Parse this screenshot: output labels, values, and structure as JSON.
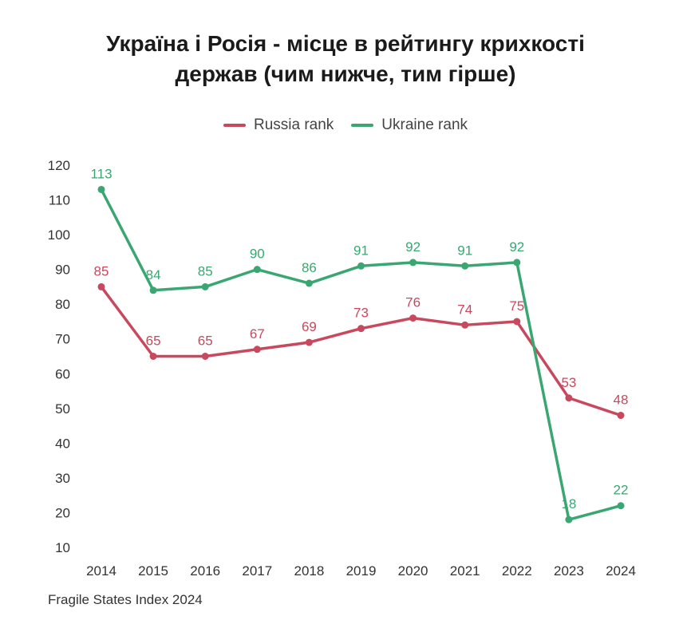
{
  "chart_data": {
    "type": "line",
    "title_lines": [
      "Україна і Росія - місце в рейтингу крихкості",
      "держав (чим нижче, тим гірше)"
    ],
    "categories": [
      "2014",
      "2015",
      "2016",
      "2017",
      "2018",
      "2019",
      "2020",
      "2021",
      "2022",
      "2023",
      "2024"
    ],
    "series": [
      {
        "name": "Russia rank",
        "color": "#c8485e",
        "values": [
          85,
          65,
          65,
          67,
          69,
          73,
          76,
          74,
          75,
          53,
          48
        ]
      },
      {
        "name": "Ukraine rank",
        "color": "#3aa772",
        "values": [
          113,
          84,
          85,
          90,
          86,
          91,
          92,
          91,
          92,
          18,
          22
        ]
      }
    ],
    "yticks": [
      10,
      20,
      30,
      40,
      50,
      60,
      70,
      80,
      90,
      100,
      110,
      120
    ],
    "ylim": [
      10,
      120
    ],
    "grid": false,
    "legend_position": "top-center",
    "source": "Fragile States Index 2024"
  }
}
